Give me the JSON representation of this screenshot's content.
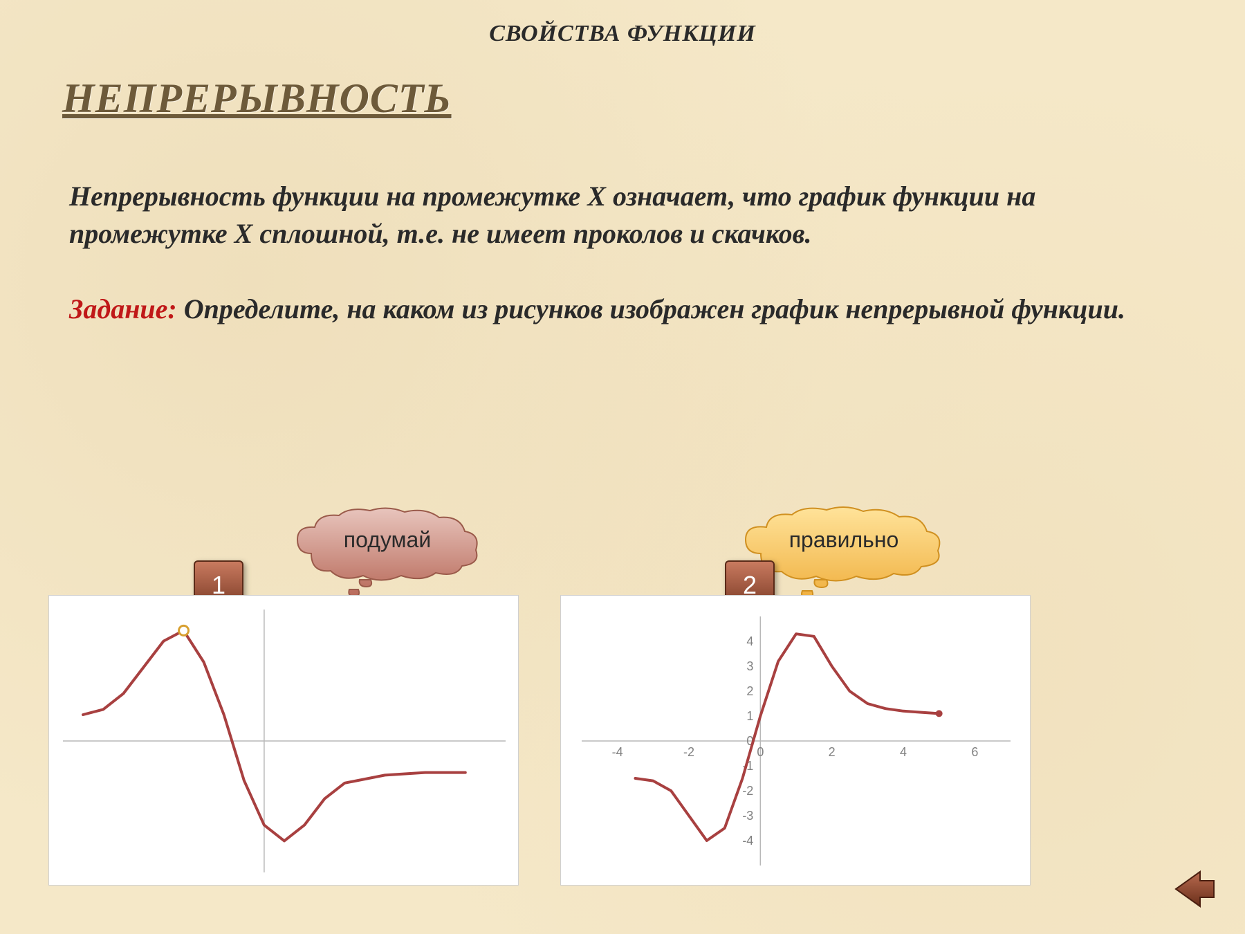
{
  "header_sub": "СВОЙСТВА ФУНКЦИИ",
  "title": "НЕПРЕРЫВНОСТЬ",
  "definition": "Непрерывность функции на промежутке Х означает, что график функции на промежутке Х сплошной, т.е. не имеет проколов и скачков.",
  "task_label": "Задание:",
  "task_text": "  Определите, на каком из рисунков изображен график непрерывной функции.",
  "cloud1": {
    "text": "подумай",
    "fill_top": "#e8c5bd",
    "fill_bot": "#b86a5a",
    "stroke": "#9a5a4a"
  },
  "cloud2": {
    "text": "правильно",
    "fill_top": "#ffe39a",
    "fill_bot": "#f0b040",
    "stroke": "#d09020"
  },
  "badge1": {
    "label": "1",
    "fill_top": "#c97a5f",
    "fill_bot": "#7a3a25",
    "stroke": "#5a2a18"
  },
  "badge2": {
    "label": "2",
    "fill_top": "#c97a5f",
    "fill_bot": "#7a3a25",
    "stroke": "#5a2a18"
  },
  "chart1": {
    "type": "line",
    "bg": "#ffffff",
    "axis_color": "#b8b8b8",
    "line_color": "#a84040",
    "line_width": 4,
    "hole_stroke": "#d8a030",
    "hole_fill": "#ffffff",
    "xlim": [
      -5,
      6
    ],
    "ylim": [
      -5,
      5
    ],
    "segments": [
      [
        [
          -4.5,
          1.0
        ],
        [
          -4.0,
          1.2
        ],
        [
          -3.5,
          1.8
        ],
        [
          -3.0,
          2.8
        ],
        [
          -2.5,
          3.8
        ],
        [
          -2.0,
          4.2
        ]
      ],
      [
        [
          -2.0,
          4.2
        ],
        [
          -1.5,
          3.0
        ],
        [
          -1.0,
          1.0
        ],
        [
          -0.5,
          -1.5
        ],
        [
          0.0,
          -3.2
        ],
        [
          0.5,
          -3.8
        ],
        [
          1.0,
          -3.2
        ],
        [
          1.5,
          -2.2
        ],
        [
          2.0,
          -1.6
        ],
        [
          3.0,
          -1.3
        ],
        [
          4.0,
          -1.2
        ],
        [
          5.0,
          -1.2
        ]
      ]
    ],
    "hole_at": [
      -2.0,
      4.2
    ]
  },
  "chart2": {
    "type": "line",
    "bg": "#ffffff",
    "axis_color": "#b8b8b8",
    "tick_color": "#808080",
    "tick_font": 18,
    "line_color": "#a84040",
    "line_width": 4,
    "xlim": [
      -5,
      7
    ],
    "ylim": [
      -5,
      5
    ],
    "xticks": [
      -4,
      -2,
      0,
      2,
      4,
      6
    ],
    "yticks": [
      -4,
      -3,
      -2,
      -1,
      0,
      1,
      2,
      3,
      4
    ],
    "points": [
      [
        -3.5,
        -1.5
      ],
      [
        -3.0,
        -1.6
      ],
      [
        -2.5,
        -2.0
      ],
      [
        -2.0,
        -3.0
      ],
      [
        -1.5,
        -4.0
      ],
      [
        -1.0,
        -3.5
      ],
      [
        -0.5,
        -1.5
      ],
      [
        0.0,
        1.0
      ],
      [
        0.5,
        3.2
      ],
      [
        1.0,
        4.3
      ],
      [
        1.5,
        4.2
      ],
      [
        2.0,
        3.0
      ],
      [
        2.5,
        2.0
      ],
      [
        3.0,
        1.5
      ],
      [
        3.5,
        1.3
      ],
      [
        4.0,
        1.2
      ],
      [
        4.5,
        1.15
      ],
      [
        5.0,
        1.1
      ]
    ],
    "end_marker": true
  },
  "nav": {
    "fill_top": "#b86a4f",
    "fill_bot": "#6a2f1a",
    "stroke": "#4a1f10"
  },
  "colors": {
    "page_bg": "#f5e8c8",
    "title": "#6d5a3a",
    "text": "#2a2a2a",
    "task_label": "#c01818"
  }
}
